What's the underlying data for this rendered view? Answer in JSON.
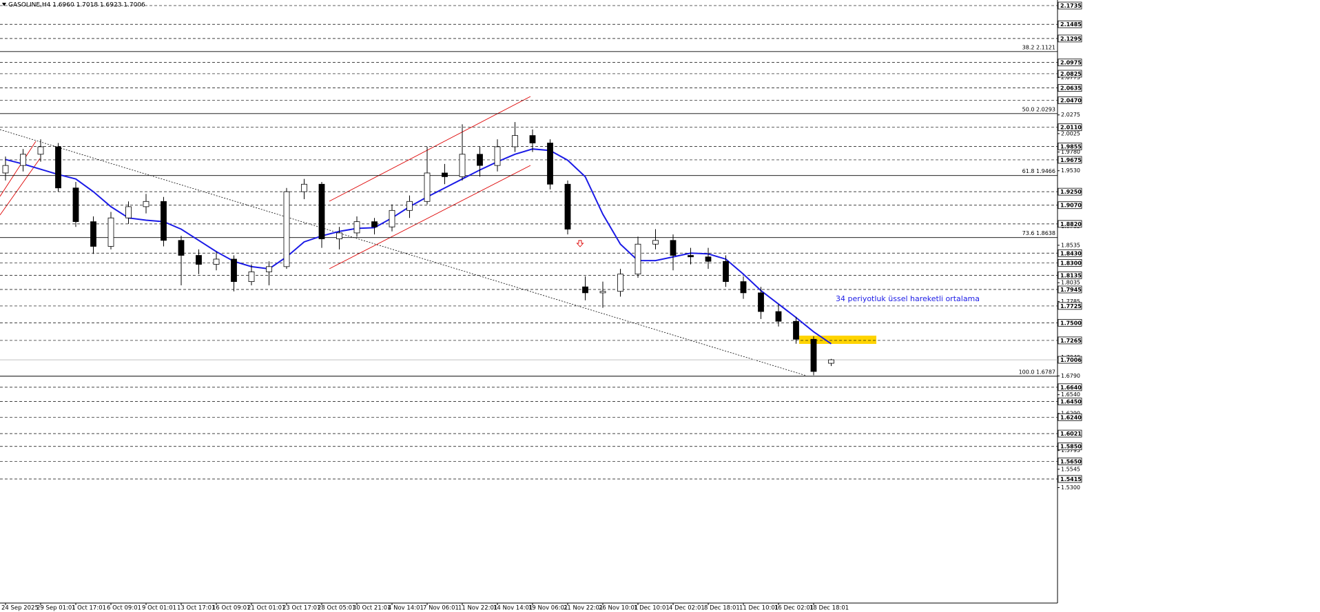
{
  "chart_data": {
    "type": "candlestick",
    "title": "GASOLINE,H4  1.6960 1.7018 1.6923 1.7006",
    "annotation": "34 periyotluk üssel hareketli ortalama",
    "ylim": [
      1.3759,
      2.1809
    ],
    "candle_color": "#000000",
    "x_labels": [
      "24 Sep 2025",
      "29 Sep 01:01",
      "1 Oct 17:01",
      "6 Oct 09:01",
      "9 Oct 01:01",
      "13 Oct 17:01",
      "16 Oct 09:01",
      "21 Oct 01:01",
      "23 Oct 17:01",
      "28 Oct 05:01",
      "30 Oct 21:01",
      "4 Nov 14:01",
      "7 Nov 06:01",
      "11 Nov 22:01",
      "14 Nov 14:01",
      "19 Nov 06:01",
      "21 Nov 22:01",
      "26 Nov 10:01",
      "1 Dec 10:01",
      "4 Dec 02:01",
      "8 Dec 18:01",
      "11 Dec 10:01",
      "16 Dec 02:01",
      "18 Dec 18:01"
    ],
    "candles": [
      [
        1.95,
        1.972,
        1.94,
        1.96
      ],
      [
        1.96,
        1.982,
        1.952,
        1.975
      ],
      [
        1.975,
        1.995,
        1.965,
        1.985
      ],
      [
        1.985,
        1.99,
        1.925,
        1.93
      ],
      [
        1.93,
        1.938,
        1.878,
        1.885
      ],
      [
        1.885,
        1.892,
        1.842,
        1.852
      ],
      [
        1.852,
        1.898,
        1.848,
        1.89
      ],
      [
        1.89,
        1.912,
        1.882,
        1.905
      ],
      [
        1.905,
        1.922,
        1.896,
        1.912
      ],
      [
        1.912,
        1.918,
        1.852,
        1.86
      ],
      [
        1.86,
        1.866,
        1.8,
        1.84
      ],
      [
        1.84,
        1.848,
        1.815,
        1.828
      ],
      [
        1.828,
        1.845,
        1.82,
        1.835
      ],
      [
        1.835,
        1.84,
        1.792,
        1.805
      ],
      [
        1.805,
        1.828,
        1.8,
        1.818
      ],
      [
        1.818,
        1.832,
        1.8,
        1.825
      ],
      [
        1.825,
        1.93,
        1.822,
        1.925
      ],
      [
        1.925,
        1.942,
        1.915,
        1.935
      ],
      [
        1.935,
        1.938,
        1.85,
        1.862
      ],
      [
        1.862,
        1.878,
        1.848,
        1.87
      ],
      [
        1.87,
        1.892,
        1.865,
        1.885
      ],
      [
        1.885,
        1.89,
        1.868,
        1.878
      ],
      [
        1.878,
        1.908,
        1.872,
        1.9
      ],
      [
        1.9,
        1.92,
        1.89,
        1.912
      ],
      [
        1.912,
        1.985,
        1.908,
        1.95
      ],
      [
        1.95,
        1.962,
        1.935,
        1.945
      ],
      [
        1.945,
        2.015,
        1.94,
        1.975
      ],
      [
        1.975,
        1.985,
        1.945,
        1.96
      ],
      [
        1.96,
        1.995,
        1.952,
        1.985
      ],
      [
        1.985,
        2.018,
        1.978,
        2.0
      ],
      [
        2.0,
        2.008,
        1.978,
        1.99
      ],
      [
        1.99,
        1.995,
        1.928,
        1.935
      ],
      [
        1.935,
        1.94,
        1.868,
        1.875
      ],
      [
        1.798,
        1.812,
        1.78,
        1.79
      ],
      [
        1.79,
        1.805,
        1.77,
        1.792
      ],
      [
        1.792,
        1.822,
        1.785,
        1.815
      ],
      [
        1.815,
        1.865,
        1.81,
        1.855
      ],
      [
        1.855,
        1.875,
        1.848,
        1.86
      ],
      [
        1.86,
        1.868,
        1.82,
        1.84
      ],
      [
        1.84,
        1.85,
        1.828,
        1.838
      ],
      [
        1.838,
        1.85,
        1.822,
        1.832
      ],
      [
        1.832,
        1.84,
        1.798,
        1.805
      ],
      [
        1.805,
        1.812,
        1.782,
        1.79
      ],
      [
        1.79,
        1.798,
        1.755,
        1.765
      ],
      [
        1.765,
        1.775,
        1.745,
        1.752
      ],
      [
        1.752,
        1.758,
        1.722,
        1.728
      ],
      [
        1.728,
        1.732,
        1.68,
        1.685
      ],
      [
        1.696,
        1.7018,
        1.6923,
        1.7006
      ]
    ],
    "ema": {
      "color": "#1a1ae6",
      "values": [
        1.968,
        1.962,
        1.955,
        1.948,
        1.942,
        1.925,
        1.905,
        1.89,
        1.887,
        1.885,
        1.875,
        1.86,
        1.845,
        1.832,
        1.825,
        1.822,
        1.838,
        1.858,
        1.866,
        1.872,
        1.876,
        1.877,
        1.89,
        1.905,
        1.918,
        1.93,
        1.942,
        1.954,
        1.965,
        1.975,
        1.982,
        1.98,
        1.967,
        1.945,
        1.895,
        1.855,
        1.833,
        1.833,
        1.838,
        1.843,
        1.842,
        1.835,
        1.815,
        1.793,
        1.775,
        1.757,
        1.738,
        1.722
      ]
    },
    "levels": [
      2.1735,
      2.1485,
      2.1295,
      2.0975,
      2.0825,
      2.0635,
      {
        "value": 2.047,
        "label": "2.0470"
      },
      {
        "value": 2.011,
        "label": "2.0110"
      },
      1.9855,
      1.9675,
      {
        "value": 1.925,
        "label": "1.9250"
      },
      {
        "value": 1.907,
        "label": "1.9070"
      },
      {
        "value": 1.882,
        "label": "1.8820"
      },
      {
        "value": 1.843,
        "label": "1.8430"
      },
      {
        "value": 1.83,
        "label": "1.8300"
      },
      1.8135,
      1.7945,
      1.7725,
      {
        "value": 1.75,
        "label": "1.7500"
      },
      1.7265,
      {
        "value": 1.664,
        "label": "1.6640"
      },
      {
        "value": 1.645,
        "label": "1.6450"
      },
      {
        "value": 1.624,
        "label": "1.6240"
      },
      1.6021,
      {
        "value": 1.585,
        "label": "1.5850"
      },
      {
        "value": 1.565,
        "label": "1.5650"
      },
      1.5415
    ],
    "current_price": 1.7006,
    "yticks": [
      2.0775,
      2.0275,
      2.0025,
      {
        "value": 1.978,
        "label": "1.9780"
      },
      {
        "value": 1.953,
        "label": "1.9530"
      },
      1.8785,
      1.8535,
      1.8035,
      1.7785,
      {
        "value": 1.704,
        "label": "1.7040"
      },
      {
        "value": 1.679,
        "label": "1.6790"
      },
      {
        "value": 1.654,
        "label": "1.6540"
      },
      {
        "value": 1.629,
        "label": "1.6290"
      },
      1.5795,
      1.5545,
      {
        "value": 1.53,
        "label": "1.5300"
      }
    ],
    "fib_levels": [
      {
        "value": 2.1121,
        "label": "38.2 2.1121"
      },
      {
        "value": 2.0293,
        "label": "50.0 2.0293"
      },
      {
        "value": 1.9466,
        "label": "61.8 1.9466"
      },
      {
        "value": 1.8638,
        "label": "73.6 1.8638"
      },
      {
        "value": 1.6787,
        "label": "100.0 1.6787"
      }
    ]
  }
}
